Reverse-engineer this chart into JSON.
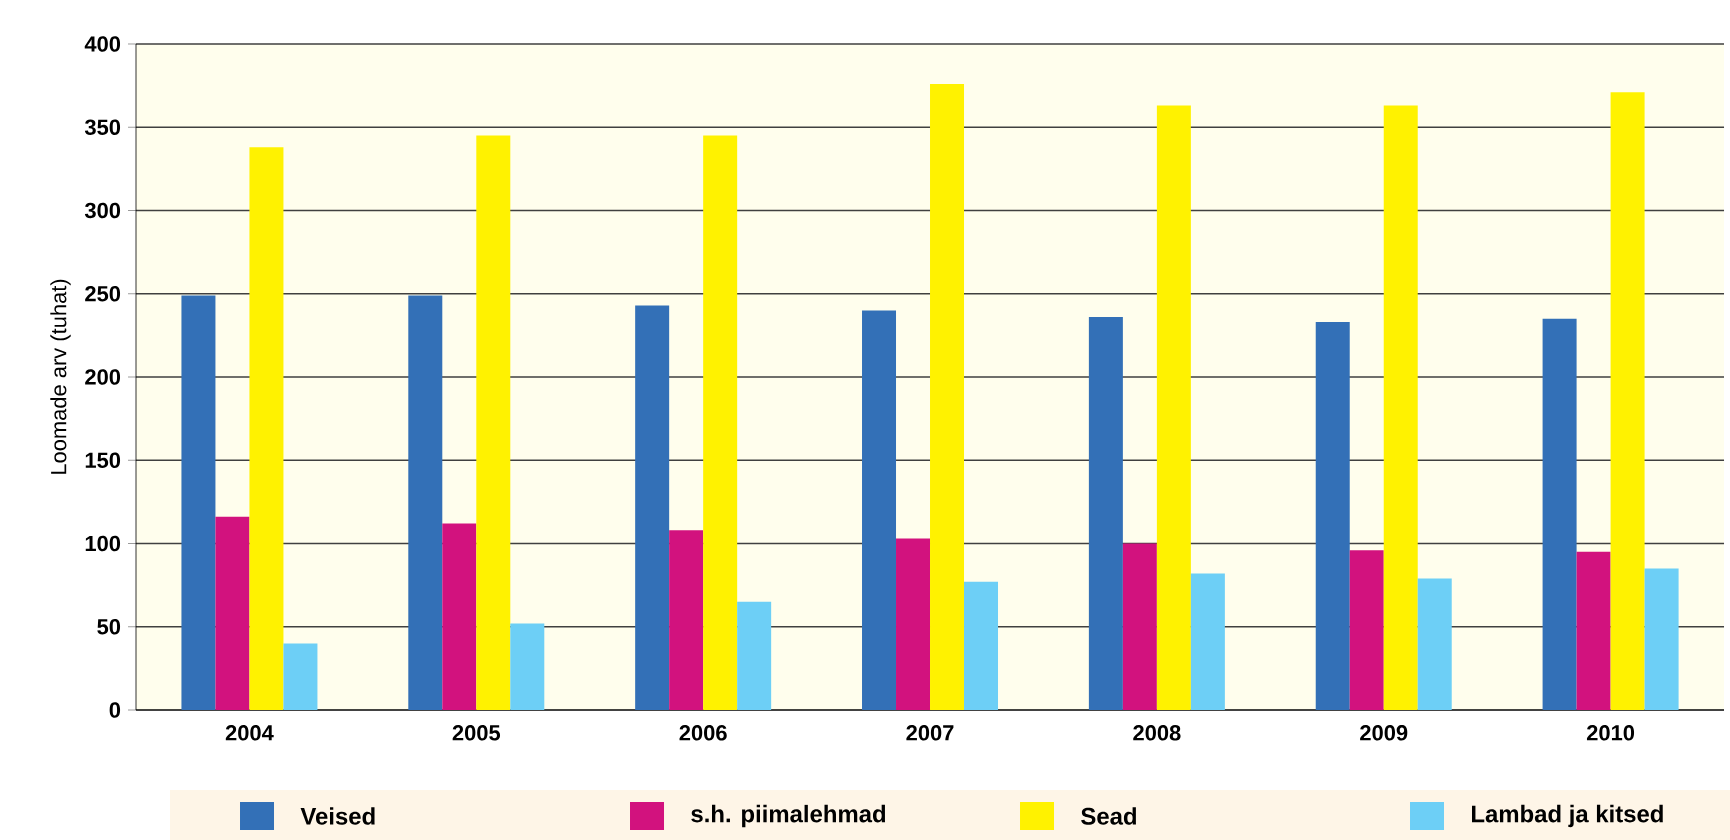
{
  "chart_data": {
    "type": "bar",
    "ylabel": "Loomade arv (tuhat)",
    "categories": [
      "2004",
      "2005",
      "2006",
      "2007",
      "2008",
      "2009",
      "2010"
    ],
    "series": [
      {
        "name": "Veised",
        "color": "#3370b7",
        "values": [
          249,
          249,
          243,
          240,
          236,
          233,
          235
        ]
      },
      {
        "name": "s.h. piimalehmad",
        "color": "#d2127e",
        "values": [
          116,
          112,
          108,
          103,
          100,
          96,
          95
        ]
      },
      {
        "name": "Sead",
        "color": "#fff200",
        "values": [
          338,
          345,
          345,
          376,
          363,
          363,
          371
        ]
      },
      {
        "name": "Lambad ja kitsed",
        "color": "#6dcff6",
        "values": [
          40,
          52,
          65,
          77,
          82,
          79,
          85
        ]
      }
    ],
    "ylim": [
      0,
      400
    ],
    "yticks": [
      0,
      50,
      100,
      150,
      200,
      250,
      300,
      350,
      400
    ],
    "grid": "y",
    "legend": "bottom"
  }
}
